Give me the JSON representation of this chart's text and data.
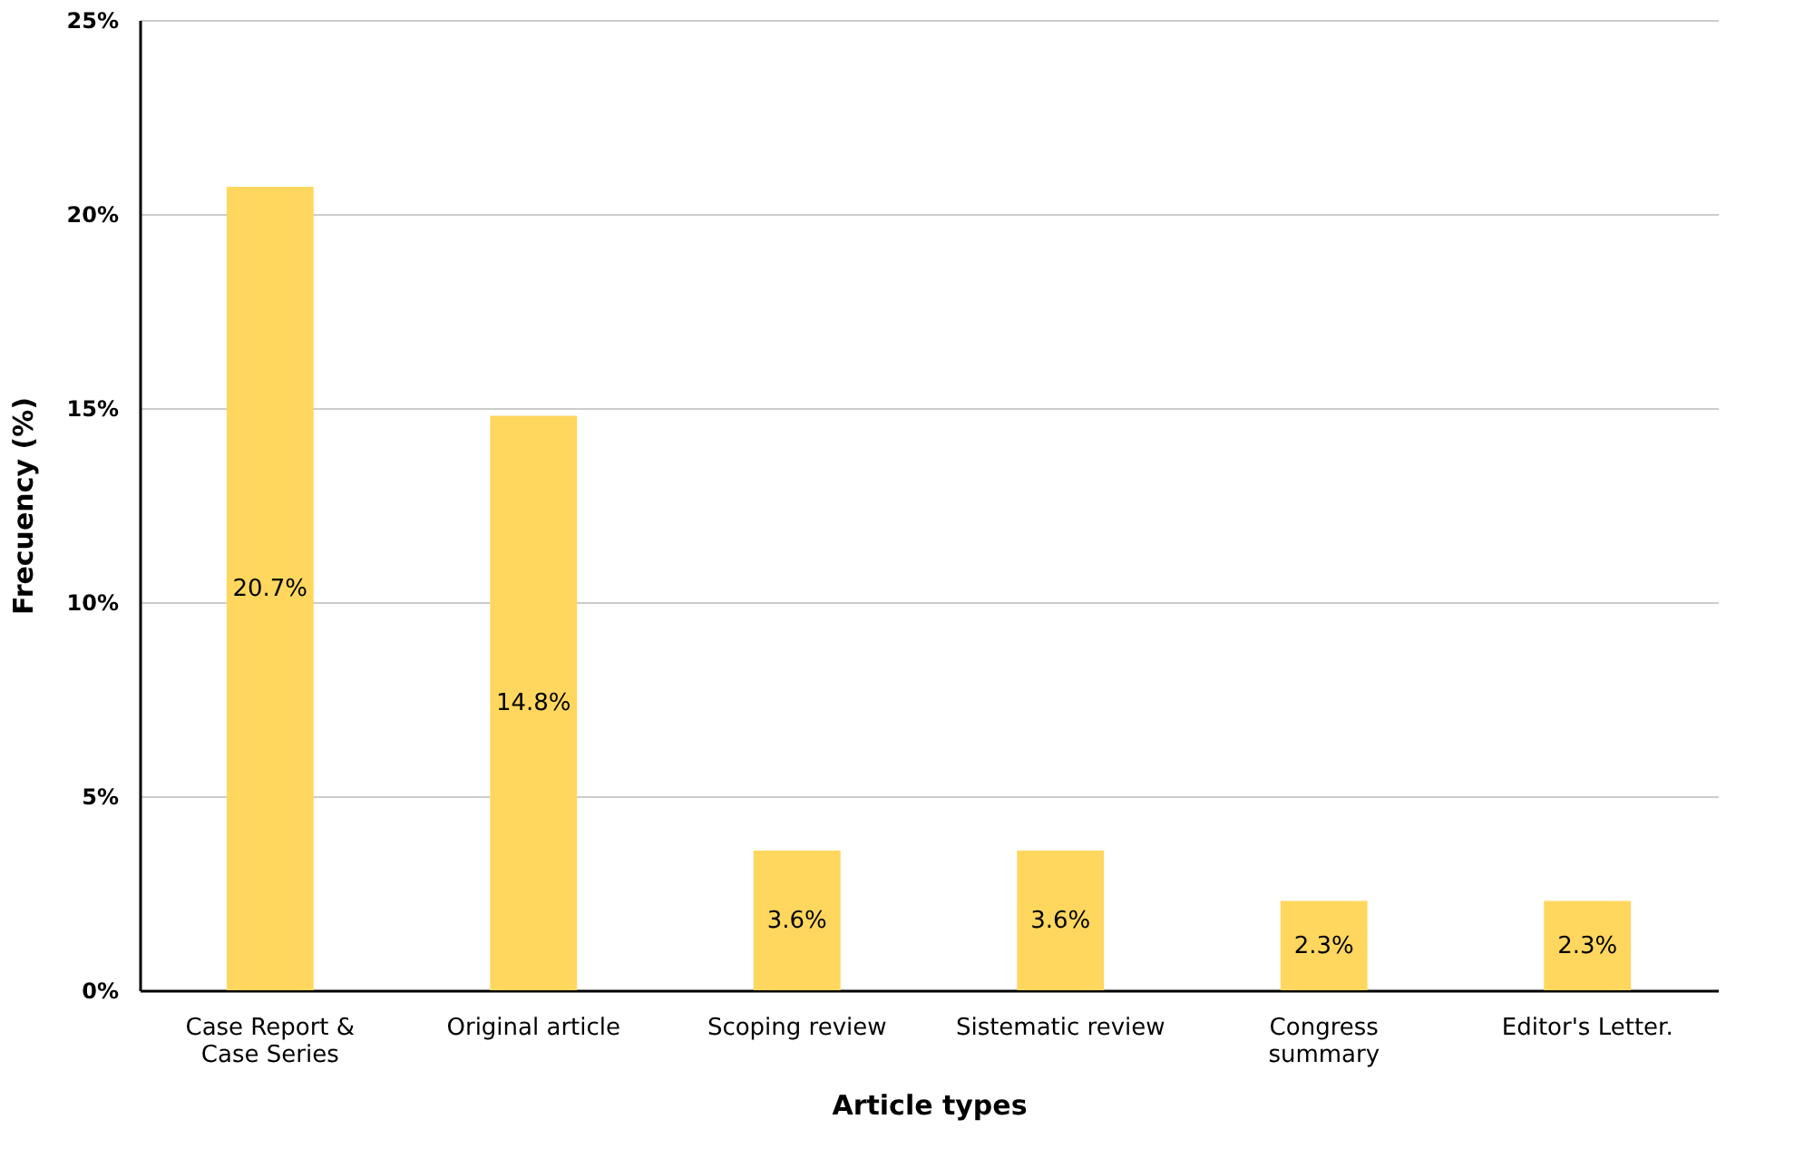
{
  "chart_data": {
    "type": "bar",
    "xlabel": "Article types",
    "ylabel": "Frecuency (%)",
    "categories": [
      "Case Report &\nCase Series",
      "Original article",
      "Scoping review",
      "Sistematic review",
      "Congress\nsummary",
      "Editor's Letter."
    ],
    "values": [
      20.7,
      14.8,
      3.6,
      3.6,
      2.3,
      2.3
    ],
    "value_labels": [
      "20.7%",
      "14.8%",
      "3.6%",
      "3.6%",
      "2.3%",
      "2.3%"
    ],
    "color": "#ffd75e",
    "ylim": [
      0,
      25
    ],
    "yticks": [
      {
        "value": 0,
        "label": "0%"
      },
      {
        "value": 5,
        "label": "5%"
      },
      {
        "value": 10,
        "label": "10%"
      },
      {
        "value": 15,
        "label": "15%"
      },
      {
        "value": 20,
        "label": "20%"
      },
      {
        "value": 25,
        "label": "25%"
      }
    ],
    "grid": "y"
  }
}
